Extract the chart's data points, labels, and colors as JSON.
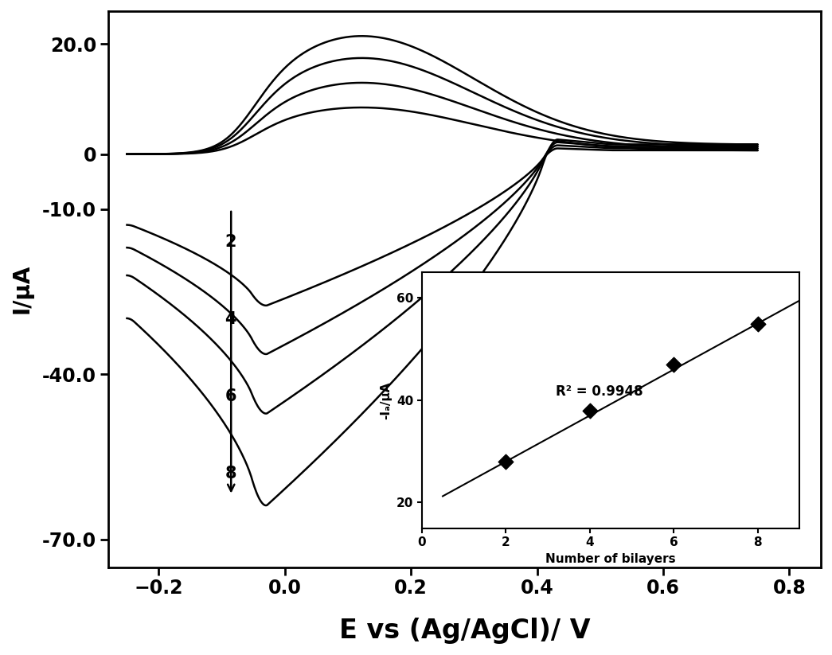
{
  "title": "",
  "xlabel": "E vs (Ag/AgCl)/ V",
  "ylabel": "I/μA",
  "xlim": [
    -0.28,
    0.85
  ],
  "ylim": [
    -75,
    26
  ],
  "xticks": [
    -0.2,
    0.0,
    0.2,
    0.4,
    0.6,
    0.8
  ],
  "ytick_vals": [
    -70.0,
    -40.0,
    -10.0,
    0,
    20.0
  ],
  "ytick_labels": [
    "-70.0",
    "-40.0",
    "-10.0",
    "0",
    "20.0"
  ],
  "curve_labels": [
    "2",
    "4",
    "6",
    "8"
  ],
  "inset": {
    "xlim": [
      0,
      9
    ],
    "ylim": [
      15,
      65
    ],
    "xticks": [
      0,
      2,
      4,
      6,
      8
    ],
    "yticks": [
      20,
      40,
      60
    ],
    "xlabel": "Number of bilayers",
    "ylabel": "-Iₐ/μA",
    "data_x": [
      2,
      4,
      6,
      8
    ],
    "data_y": [
      28,
      38,
      47,
      55
    ],
    "r_squared": "R² = 0.9948",
    "r_squared_x": 3.2,
    "r_squared_y": 41
  },
  "background_color": "#ffffff",
  "line_color": "#000000",
  "curves": [
    {
      "anodic_peak": 8.5,
      "cathodic_min": -28
    },
    {
      "anodic_peak": 13.0,
      "cathodic_min": -37
    },
    {
      "anodic_peak": 17.5,
      "cathodic_min": -48
    },
    {
      "anodic_peak": 21.5,
      "cathodic_min": -65
    }
  ]
}
